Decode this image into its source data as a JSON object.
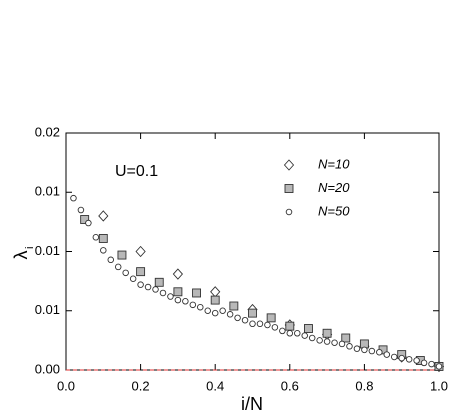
{
  "chart_data": {
    "type": "scatter",
    "annotation": "U=0.1",
    "xlabel": "i/N",
    "ylabel": {
      "text": "λ",
      "subscript": "i"
    },
    "xlim": [
      0,
      1
    ],
    "ylim": [
      0,
      0.02
    ],
    "xticks": [
      {
        "value": 0,
        "label": "0.0"
      },
      0.2,
      0.4,
      0.6,
      0.8,
      {
        "value": 1,
        "label": "1.0"
      }
    ],
    "yticks": [
      {
        "value": 0,
        "label": "0.00"
      },
      {
        "value": 0.005,
        "label": "0.01"
      },
      {
        "value": 0.01,
        "label": "0.01"
      },
      {
        "value": 0.015,
        "label": "0.01"
      },
      {
        "value": 0.02,
        "label": "0.02"
      }
    ],
    "hline": {
      "value": 0,
      "color": "#e03030"
    },
    "series": [
      {
        "name": "N=10",
        "marker": "diamond",
        "color": "#ffffff",
        "x": [
          0.1,
          0.2,
          0.3,
          0.4,
          0.5,
          0.6,
          0.7,
          0.8,
          0.9,
          1.0
        ],
        "values": [
          0.013,
          0.01,
          0.0081,
          0.0066,
          0.0051,
          0.0038,
          0.003,
          0.002,
          0.0011,
          0.0003
        ]
      },
      {
        "name": "N=20",
        "marker": "square",
        "color": "#b8b8b8",
        "x": [
          0.05,
          0.1,
          0.15,
          0.2,
          0.25,
          0.3,
          0.35,
          0.4,
          0.45,
          0.5,
          0.55,
          0.6,
          0.65,
          0.7,
          0.75,
          0.8,
          0.85,
          0.9,
          0.95,
          1.0
        ],
        "values": [
          0.0127,
          0.0111,
          0.0097,
          0.0083,
          0.0074,
          0.0066,
          0.0065,
          0.0059,
          0.0054,
          0.0048,
          0.0044,
          0.0037,
          0.0035,
          0.0031,
          0.0027,
          0.0022,
          0.0017,
          0.0013,
          0.0008,
          0.0003
        ]
      },
      {
        "name": "N=50",
        "marker": "circle",
        "color": "#ffffff",
        "x": [
          0.02,
          0.04,
          0.06,
          0.08,
          0.1,
          0.12,
          0.14,
          0.16,
          0.18,
          0.2,
          0.22,
          0.24,
          0.26,
          0.28,
          0.3,
          0.32,
          0.34,
          0.36,
          0.38,
          0.4,
          0.42,
          0.44,
          0.46,
          0.48,
          0.5,
          0.52,
          0.54,
          0.56,
          0.58,
          0.6,
          0.62,
          0.64,
          0.66,
          0.68,
          0.7,
          0.72,
          0.74,
          0.76,
          0.78,
          0.8,
          0.82,
          0.84,
          0.86,
          0.88,
          0.9,
          0.92,
          0.94,
          0.96,
          0.98,
          1.0
        ],
        "values": [
          0.0145,
          0.0135,
          0.0124,
          0.0112,
          0.0101,
          0.0093,
          0.0087,
          0.0082,
          0.0077,
          0.0072,
          0.007,
          0.0068,
          0.0065,
          0.0062,
          0.0059,
          0.0058,
          0.0055,
          0.0053,
          0.005,
          0.0048,
          0.005,
          0.0047,
          0.0044,
          0.0042,
          0.0039,
          0.0039,
          0.0038,
          0.0036,
          0.0033,
          0.0031,
          0.0031,
          0.0029,
          0.0027,
          0.0025,
          0.0024,
          0.0023,
          0.0022,
          0.002,
          0.0018,
          0.0017,
          0.0016,
          0.0015,
          0.0013,
          0.0011,
          0.001,
          0.0009,
          0.0008,
          0.0006,
          0.0005,
          0.0003
        ]
      }
    ]
  }
}
